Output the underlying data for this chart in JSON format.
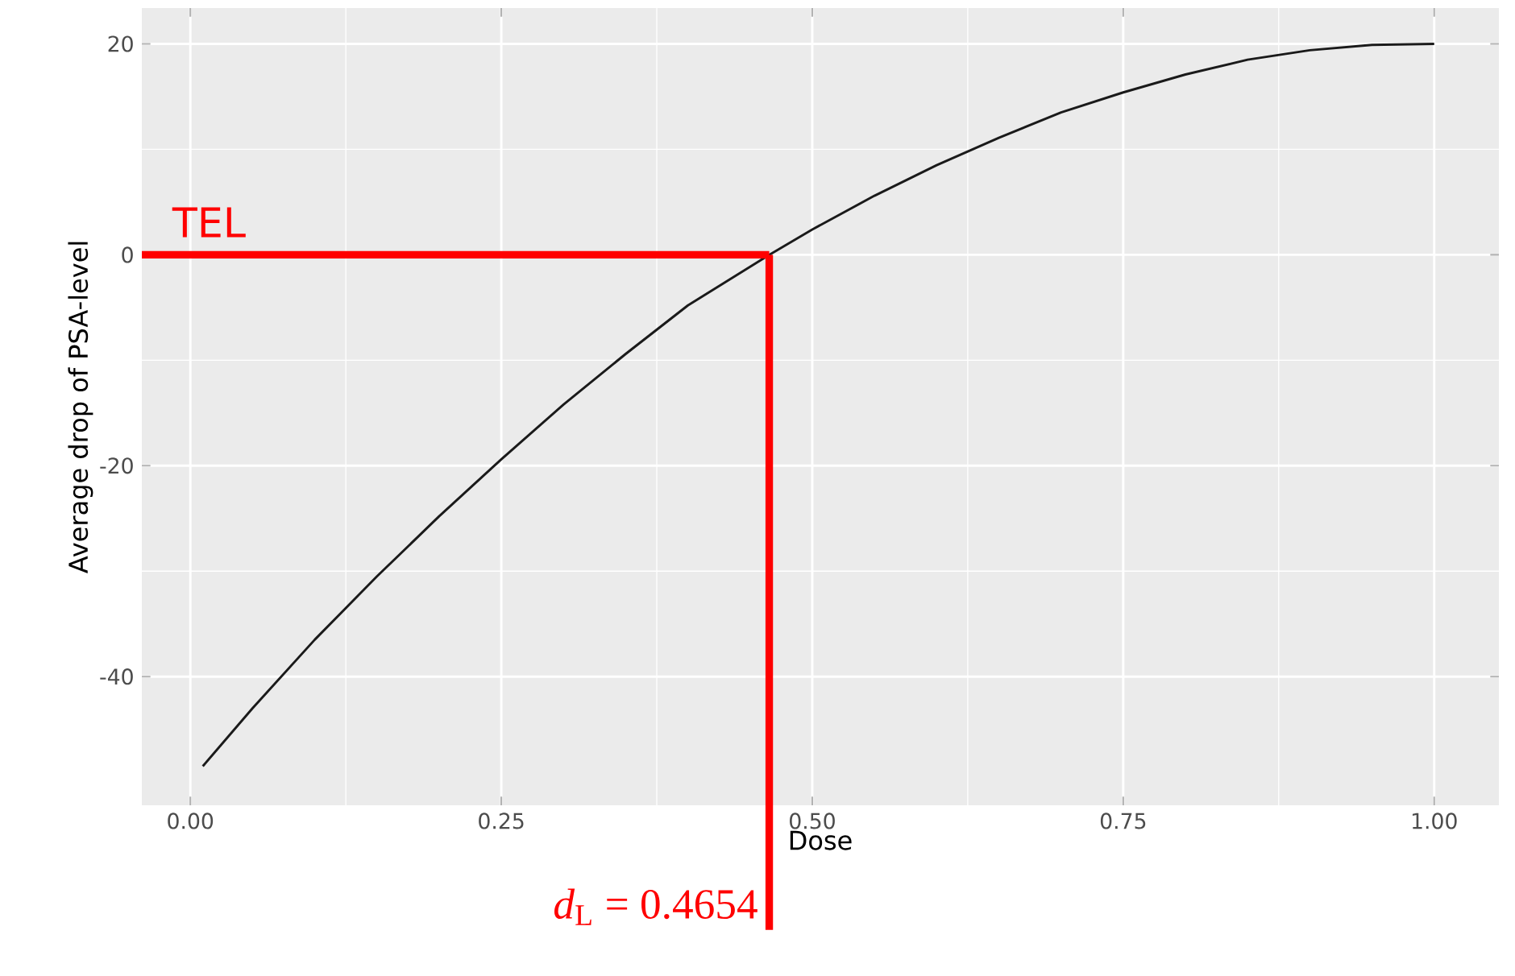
{
  "chart_data": {
    "type": "line",
    "xlabel": "Dose",
    "ylabel": "Average drop of PSA-level",
    "x": [
      0.01,
      0.05,
      0.1,
      0.15,
      0.2,
      0.25,
      0.3,
      0.35,
      0.4,
      0.4654,
      0.5,
      0.55,
      0.6,
      0.65,
      0.7,
      0.75,
      0.8,
      0.85,
      0.9,
      0.95,
      1.0
    ],
    "series": [
      {
        "color": "#1a1a1a",
        "values": [
          -48.5,
          -43,
          -36.5,
          -30.5,
          -24.8,
          -19.4,
          -14.2,
          -9.4,
          -4.8,
          0,
          2.4,
          5.6,
          8.5,
          11.1,
          13.5,
          15.4,
          17.1,
          18.5,
          19.4,
          19.9,
          20
        ]
      }
    ],
    "xlim": [
      -0.039,
      1.052
    ],
    "ylim": [
      -52.2,
      23.4
    ],
    "xticks": [
      {
        "value": 0,
        "label": "0.00"
      },
      {
        "value": 0.25,
        "label": "0.25"
      },
      {
        "value": 0.5,
        "label": "0.50"
      },
      {
        "value": 0.75,
        "label": "0.75"
      },
      {
        "value": 1,
        "label": "1.00"
      }
    ],
    "yticks": [
      -40,
      -20,
      0,
      20
    ],
    "grid": true,
    "ref_lines": [
      {
        "axis": "y",
        "value": 0,
        "label": "TEL",
        "color": "#ff0000"
      },
      {
        "axis": "x",
        "value": 0.4654,
        "label": "*d*$_{L}$ = 0.4654",
        "color": "#ff0000"
      }
    ]
  }
}
